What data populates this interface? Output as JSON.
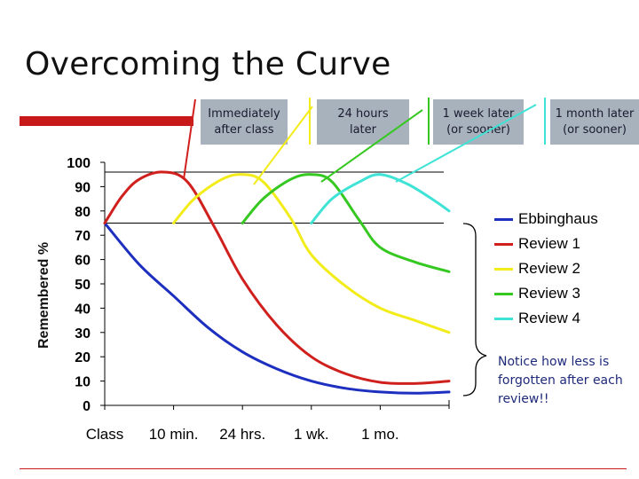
{
  "slide": {
    "title": "Overcoming the Curve",
    "callouts": [
      {
        "text": "Immediately\nafter class"
      },
      {
        "text": "24 hours\nlater"
      },
      {
        "text": "1 week later\n(or sooner)"
      },
      {
        "text": "1 month later\n(or sooner)"
      }
    ],
    "note": "Notice how less is forgotten after each review!!"
  },
  "chart_data": {
    "type": "line",
    "ylabel": "Remembered %",
    "ylim": [
      0,
      100
    ],
    "yticks": [
      0,
      10,
      20,
      30,
      40,
      50,
      60,
      70,
      80,
      90,
      100
    ],
    "xlim": [
      0,
      5
    ],
    "xticks": [
      {
        "x": 0,
        "label": "Class"
      },
      {
        "x": 1,
        "label": "10 min."
      },
      {
        "x": 2,
        "label": "24 hrs."
      },
      {
        "x": 3,
        "label": "1 wk."
      },
      {
        "x": 4,
        "label": "1 mo."
      }
    ],
    "reference_lines": [
      96,
      75
    ],
    "series": [
      {
        "name": "Ebbinghaus",
        "color": "#1d2fbf",
        "points": [
          [
            0,
            75
          ],
          [
            0.5,
            58
          ],
          [
            1,
            45
          ],
          [
            1.5,
            32
          ],
          [
            2,
            22
          ],
          [
            2.5,
            15
          ],
          [
            3,
            10
          ],
          [
            3.5,
            7
          ],
          [
            4,
            5.5
          ],
          [
            4.5,
            5
          ],
          [
            5,
            5.5
          ]
        ]
      },
      {
        "name": "Review 1",
        "color": "#d0201d",
        "points": [
          [
            0,
            75
          ],
          [
            0.25,
            86
          ],
          [
            0.5,
            93
          ],
          [
            0.85,
            96
          ],
          [
            1.2,
            92
          ],
          [
            1.6,
            73
          ],
          [
            2,
            52
          ],
          [
            2.5,
            33
          ],
          [
            3,
            20
          ],
          [
            3.5,
            13
          ],
          [
            4,
            9.5
          ],
          [
            4.5,
            9
          ],
          [
            5,
            10
          ]
        ]
      },
      {
        "name": "Review 2",
        "color": "#f2ec1a",
        "points": [
          [
            1,
            75
          ],
          [
            1.3,
            85
          ],
          [
            1.7,
            93
          ],
          [
            2,
            95
          ],
          [
            2.3,
            92
          ],
          [
            2.7,
            77
          ],
          [
            3,
            62
          ],
          [
            3.5,
            49
          ],
          [
            4,
            40
          ],
          [
            4.5,
            35
          ],
          [
            5,
            30
          ]
        ]
      },
      {
        "name": "Review 3",
        "color": "#35c820",
        "points": [
          [
            2,
            75
          ],
          [
            2.3,
            85
          ],
          [
            2.7,
            93
          ],
          [
            3,
            95
          ],
          [
            3.3,
            92
          ],
          [
            3.7,
            76
          ],
          [
            4,
            65
          ],
          [
            4.5,
            59
          ],
          [
            5,
            55
          ]
        ]
      },
      {
        "name": "Review 4",
        "color": "#3fe3d6",
        "points": [
          [
            3,
            75
          ],
          [
            3.3,
            85
          ],
          [
            3.7,
            92
          ],
          [
            4,
            95
          ],
          [
            4.4,
            91
          ],
          [
            4.8,
            84
          ],
          [
            5,
            80
          ]
        ]
      }
    ]
  }
}
